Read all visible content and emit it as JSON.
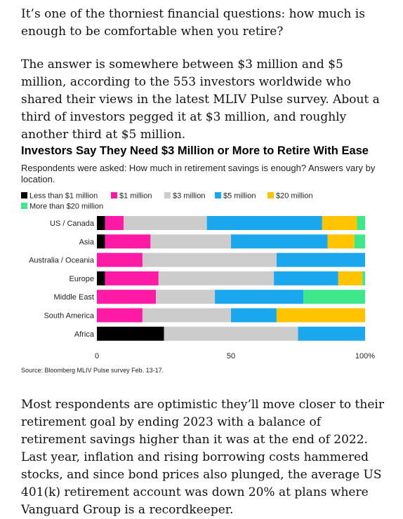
{
  "article": {
    "para1": "It’s one of the thorniest financial questions: how much is enough to be comfortable when you retire?",
    "para2": "The answer is somewhere between $3 million and $5 million, according to the 553 investors worldwide who shared their views in the latest MLIV Pulse survey. About a third of investors pegged it at $3 million, and roughly another third at $5 million.",
    "para3": "Most respondents are optimistic they’ll move closer to their retirement goal by ending 2023 with a balance of retirement savings higher than it was at the end of 2022. Last year, inflation and rising borrowing costs hammered stocks, and since bond prices also plunged, the average US 401(k) retirement account was down 20% at plans where Vanguard Group is a recordkeeper."
  },
  "chart_data": {
    "type": "bar",
    "orientation": "horizontal",
    "stacked": true,
    "title": "Investors Say They Need $3 Million or More to Retire With Ease",
    "subtitle": "Respondents were asked: How much in retirement savings is enough? Answers vary by location.",
    "categories": [
      "US / Canada",
      "Asia",
      "Australia / Oceania",
      "Europe",
      "Middle East",
      "South America",
      "Africa"
    ],
    "series": [
      {
        "name": "Less than $1 million",
        "color": "#000000",
        "values": [
          3,
          3,
          0,
          3,
          0,
          0,
          25
        ]
      },
      {
        "name": "$1 million",
        "color": "#ff1aa5",
        "values": [
          7,
          17,
          17,
          20,
          22,
          17,
          0
        ]
      },
      {
        "name": "$3 million",
        "color": "#cccccc",
        "values": [
          31,
          30,
          50,
          43,
          22,
          33,
          50
        ]
      },
      {
        "name": "$5 million",
        "color": "#1aa7ee",
        "values": [
          43,
          36,
          33,
          24,
          33,
          17,
          25
        ]
      },
      {
        "name": "$20 million",
        "color": "#ffc300",
        "values": [
          13,
          10,
          0,
          9,
          0,
          33,
          0
        ]
      },
      {
        "name": "More than $20 million",
        "color": "#3ee88a",
        "values": [
          3,
          4,
          0,
          1,
          23,
          0,
          0
        ]
      }
    ],
    "xlim": [
      0,
      100
    ],
    "xticks": [
      "0",
      "50",
      "100%"
    ],
    "legend_position": "top-left",
    "grid": false,
    "source": "Source: Bloomberg MLIV Pulse survey Feb. 13-17."
  }
}
